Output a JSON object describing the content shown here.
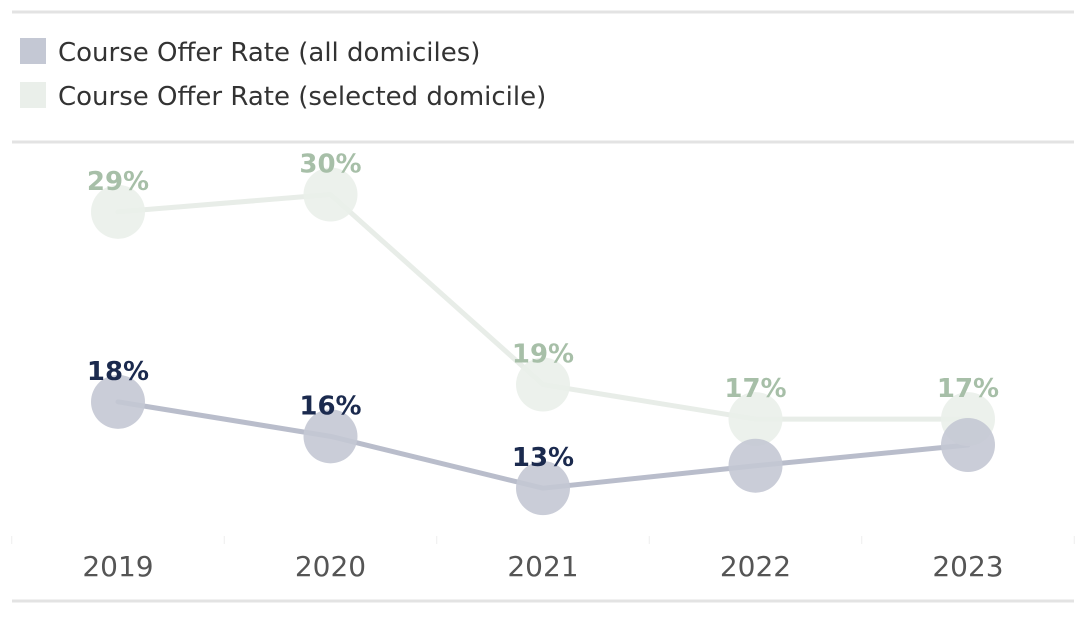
{
  "chart_data": {
    "type": "line",
    "categories": [
      "2019",
      "2020",
      "2021",
      "2022",
      "2023"
    ],
    "series": [
      {
        "name": "Course Offer Rate (all domiciles)",
        "values": [
          18,
          16,
          13,
          14.3,
          15.5
        ],
        "labels": [
          "18%",
          "16%",
          "13%",
          "",
          ""
        ],
        "line_color": "#b9bdcb",
        "marker_color": "#c4c8d4",
        "label_color": "#1b2a4e"
      },
      {
        "name": "Course Offer Rate (selected domicile)",
        "values": [
          29,
          30,
          19,
          17,
          17
        ],
        "labels": [
          "29%",
          "30%",
          "19%",
          "17%",
          "17%"
        ],
        "line_color": "#e8ede8",
        "marker_color": "#eaefea",
        "label_color": "#a7bfa8"
      }
    ],
    "ylim": [
      10,
      32
    ],
    "legend_position": "top-left",
    "grid": false
  }
}
